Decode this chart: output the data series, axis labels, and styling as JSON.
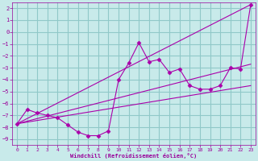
{
  "bg_color": "#c8eaea",
  "grid_color": "#90c8c8",
  "line_color": "#aa00aa",
  "marker_color": "#aa00aa",
  "xlabel": "Windchill (Refroidissement éolien,°C)",
  "xlabel_color": "#990099",
  "tick_color": "#990099",
  "xlim": [
    -0.5,
    23.5
  ],
  "ylim": [
    -9.5,
    2.5
  ],
  "xticks": [
    0,
    1,
    2,
    3,
    4,
    5,
    6,
    7,
    8,
    9,
    10,
    11,
    12,
    13,
    14,
    15,
    16,
    17,
    18,
    19,
    20,
    21,
    22,
    23
  ],
  "yticks": [
    -9,
    -8,
    -7,
    -6,
    -5,
    -4,
    -3,
    -2,
    -1,
    0,
    1,
    2
  ],
  "line1_x": [
    0,
    1,
    2,
    3,
    4,
    5,
    6,
    7,
    8,
    9,
    10,
    11,
    12,
    13,
    14,
    15,
    16,
    17,
    18,
    19,
    20,
    21,
    22,
    23
  ],
  "line1_y": [
    -7.7,
    -6.5,
    -6.8,
    -7.0,
    -7.2,
    -7.8,
    -8.4,
    -8.7,
    -8.7,
    -8.3,
    -4.0,
    -2.6,
    -0.9,
    -2.5,
    -2.3,
    -3.4,
    -3.1,
    -4.5,
    -4.8,
    -4.8,
    -4.5,
    -3.0,
    -3.1,
    2.3
  ],
  "line2_x": [
    0,
    23
  ],
  "line2_y": [
    -7.7,
    2.3
  ],
  "line3_x": [
    0,
    23
  ],
  "line3_y": [
    -7.7,
    -4.5
  ],
  "line4_x": [
    0,
    23
  ],
  "line4_y": [
    -7.7,
    -2.7
  ]
}
